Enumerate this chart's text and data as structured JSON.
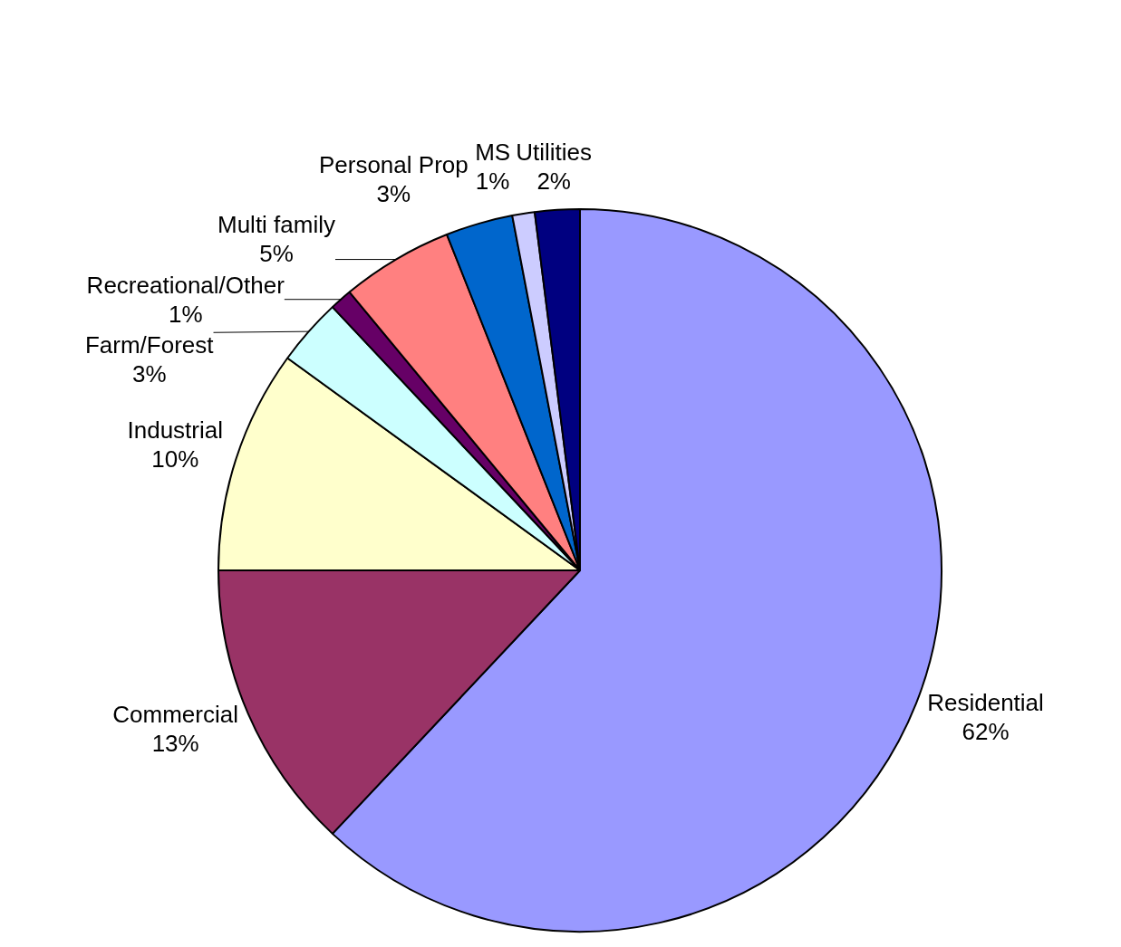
{
  "chart_data": {
    "type": "pie",
    "categories": [
      "Residential",
      "Commercial",
      "Industrial",
      "Farm/Forest",
      "Recreational/Other",
      "Multi family",
      "Personal Prop",
      "MS",
      "Utilities"
    ],
    "values": [
      62,
      13,
      10,
      3,
      1,
      5,
      3,
      1,
      2
    ],
    "value_labels": [
      "62%",
      "13%",
      "10%",
      "3%",
      "1%",
      "5%",
      "3%",
      "1%",
      "2%"
    ],
    "colors": [
      "#9999ff",
      "#993366",
      "#ffffcc",
      "#ccffff",
      "#660066",
      "#ff8080",
      "#0066cc",
      "#ccccff",
      "#000080"
    ],
    "legend": false
  }
}
